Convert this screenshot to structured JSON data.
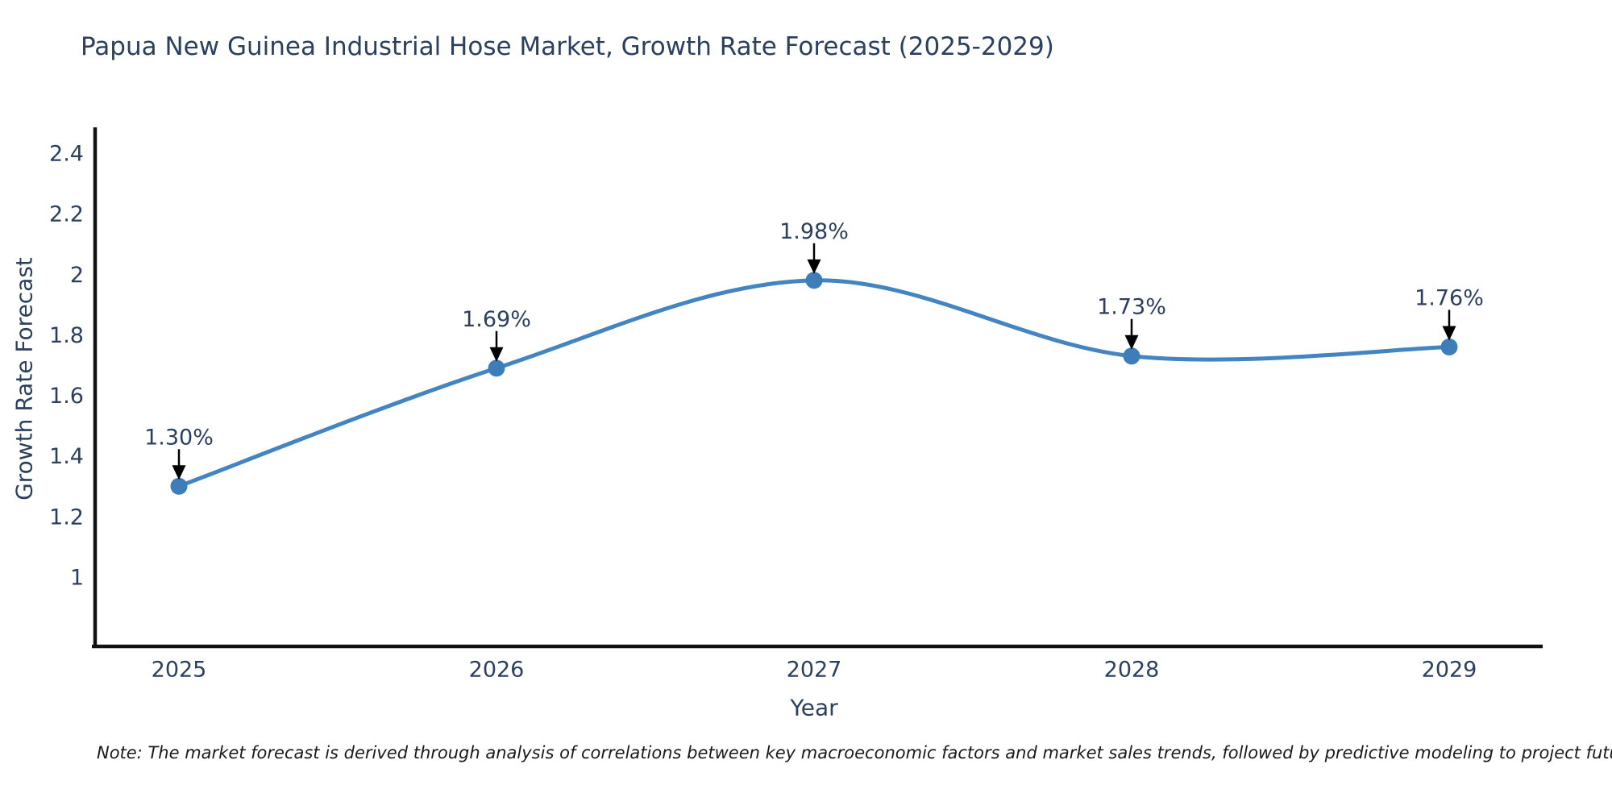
{
  "chart_data": {
    "type": "line",
    "title": "Papua New Guinea Industrial Hose Market, Growth Rate Forecast (2025-2029)",
    "xlabel": "Year",
    "ylabel": "Growth Rate Forecast",
    "categories": [
      "2025",
      "2026",
      "2027",
      "2028",
      "2029"
    ],
    "series": [
      {
        "name": "Growth Rate Forecast",
        "values": [
          1.3,
          1.69,
          1.98,
          1.73,
          1.76
        ],
        "point_labels": [
          "1.30%",
          "1.69%",
          "1.98%",
          "1.73%",
          "1.76%"
        ]
      }
    ],
    "y_tick_values": [
      2.4,
      2.2,
      2.0,
      1.8,
      1.6,
      1.4,
      1.2,
      1.0
    ],
    "y_tick_labels": [
      "2.4",
      "2.2",
      "2",
      "1.8",
      "1.6",
      "1.4",
      "1.2",
      "1"
    ],
    "ylim": [
      0.77,
      2.49
    ],
    "grid": false,
    "legend_position": "none",
    "line_shape": "spline",
    "colors": {
      "line": "#4384c1",
      "marker": "#3d7dba",
      "text": "#2b3f5f",
      "axis": "#111111",
      "arrow": "#000000"
    }
  },
  "note": "Note: The market forecast is derived through analysis of correlations between key macroeconomic factors and market sales trends, followed by predictive modeling to project future sales"
}
